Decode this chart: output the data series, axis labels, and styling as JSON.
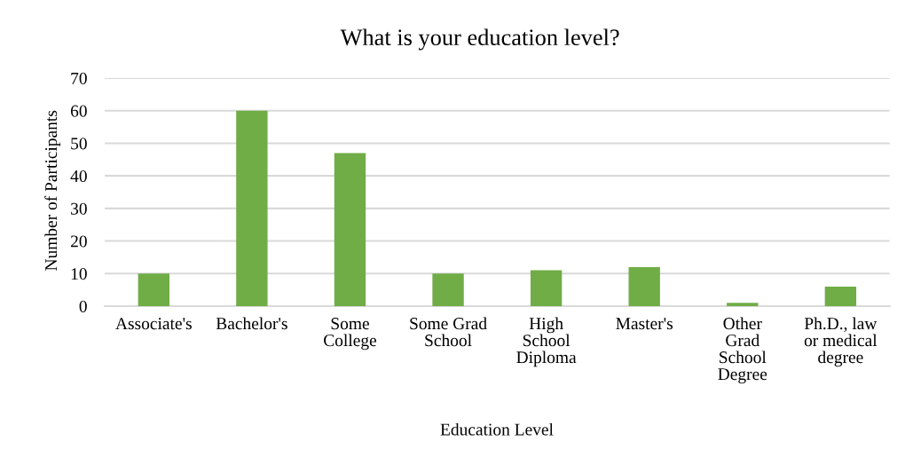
{
  "chart_data": {
    "type": "bar",
    "title": "What is your education level?",
    "xlabel": "Education Level",
    "ylabel": "Number of Participants",
    "categories": [
      "Associate's",
      "Bachelor's",
      "Some\nCollege",
      "Some Grad\nSchool",
      "High\nSchool\nDiploma",
      "Master's",
      "Other\nGrad\nSchool\nDegree",
      "Ph.D., law\nor medical\ndegree"
    ],
    "values": [
      10,
      60,
      47,
      10,
      11,
      12,
      1,
      6
    ],
    "color": "#70ad47",
    "ylim": [
      0,
      70
    ],
    "yticks": [
      0,
      10,
      20,
      30,
      40,
      50,
      60,
      70
    ],
    "grid": "y",
    "legend": false
  }
}
